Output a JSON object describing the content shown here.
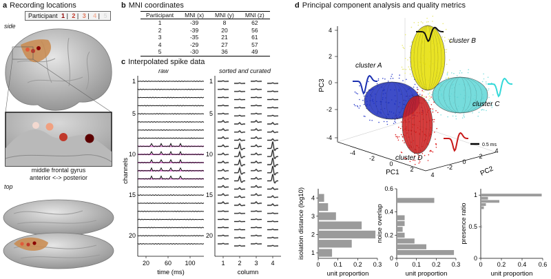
{
  "panels": {
    "a": {
      "letter": "a",
      "title": "Recording locations",
      "side": "side",
      "top": "top",
      "caption1": "middle frontal gyrus",
      "caption2": "anterior <-> posterior",
      "legend": {
        "label": "Participant",
        "items": [
          {
            "n": "1",
            "color": "#8b0000"
          },
          {
            "n": "2",
            "color": "#c0392b"
          },
          {
            "n": "3",
            "color": "#e07a5f"
          },
          {
            "n": "4",
            "color": "#f2b5a0"
          },
          {
            "n": "5",
            "color": "#dddddd"
          }
        ]
      }
    },
    "b": {
      "letter": "b",
      "title": "MNI coordinates",
      "headers": [
        "Participant",
        "MNI (x)",
        "MNI (y)",
        "MNI (z)"
      ],
      "rows": [
        [
          "1",
          "-39",
          "8",
          "62"
        ],
        [
          "2",
          "-39",
          "20",
          "56"
        ],
        [
          "3",
          "-35",
          "21",
          "61"
        ],
        [
          "4",
          "-29",
          "27",
          "57"
        ],
        [
          "5",
          "-30",
          "36",
          "49"
        ]
      ]
    },
    "c": {
      "letter": "c",
      "title": "Interpolated spike data",
      "raw": "raw",
      "sorted": "sorted and curated",
      "ylabel": "channels",
      "xlabel_left": "time (ms)",
      "xlabel_right": "column",
      "channel_ticks": [
        "1",
        "5",
        "10",
        "15",
        "20"
      ],
      "time_ticks": [
        "20",
        "60",
        "100"
      ],
      "column_ticks": [
        "1",
        "2",
        "3",
        "4"
      ]
    },
    "d": {
      "letter": "d",
      "title": "Principal component analysis and quality metrics",
      "clusters": {
        "a": "cluster A",
        "b": "cluster B",
        "c": "cluster C",
        "d": "cluster D"
      },
      "scalebar": "0.5 ms",
      "pc1": "PC1",
      "pc2": "PC2",
      "pc3": "PC3",
      "pc3_ticks": [
        "-4",
        "-2",
        "0",
        "2",
        "4"
      ],
      "pc1_ticks": [
        "-4",
        "-2",
        "0",
        "2",
        "4"
      ],
      "pc2_ticks": [
        "-2",
        "0",
        "2",
        "4"
      ]
    }
  },
  "chart_data": [
    {
      "type": "bar",
      "orientation": "horizontal",
      "ylabel": "isolation distance (log10)",
      "xlabel": "unit proportion",
      "y": [
        1,
        1.5,
        2,
        2.5,
        3,
        3.5,
        4
      ],
      "values": [
        0.07,
        0.17,
        0.29,
        0.22,
        0.09,
        0.05,
        0.03
      ],
      "xlim": [
        0,
        0.3
      ],
      "ylim": [
        0.7,
        4.5
      ],
      "xticks": [
        "0",
        "0.1",
        "0.2",
        "0.3"
      ],
      "yticks": [
        "1",
        "2",
        "3",
        "4"
      ]
    },
    {
      "type": "bar",
      "orientation": "horizontal",
      "ylabel": "noise overlap",
      "xlabel": "unit proportion",
      "y": [
        0.05,
        0.1,
        0.15,
        0.2,
        0.25,
        0.3,
        0.35,
        0.5
      ],
      "values": [
        0.29,
        0.15,
        0.09,
        0.04,
        0.03,
        0.04,
        0.04,
        0.19
      ],
      "xlim": [
        0,
        0.3
      ],
      "ylim": [
        0,
        0.6
      ],
      "xticks": [
        "0",
        "0.1",
        "0.2",
        "0.3"
      ],
      "yticks": [
        "0",
        "0.2",
        "0.4",
        "0.6"
      ]
    },
    {
      "type": "bar",
      "orientation": "horizontal",
      "ylabel": "presence ratio",
      "xlabel": "unit proportion",
      "y": [
        0.5,
        0.55,
        0.6,
        0.65,
        0.7,
        0.75,
        0.8,
        0.85,
        0.9,
        0.95,
        1.0
      ],
      "values": [
        0.01,
        0,
        0,
        0,
        0,
        0,
        0.03,
        0.05,
        0.18,
        0.07,
        0.59
      ],
      "xlim": [
        0,
        0.6
      ],
      "ylim": [
        0,
        1.1
      ],
      "xticks": [
        "0",
        "0.2",
        "0.4",
        "0.6"
      ],
      "yticks": [
        "0",
        "0.5",
        "1"
      ]
    }
  ]
}
